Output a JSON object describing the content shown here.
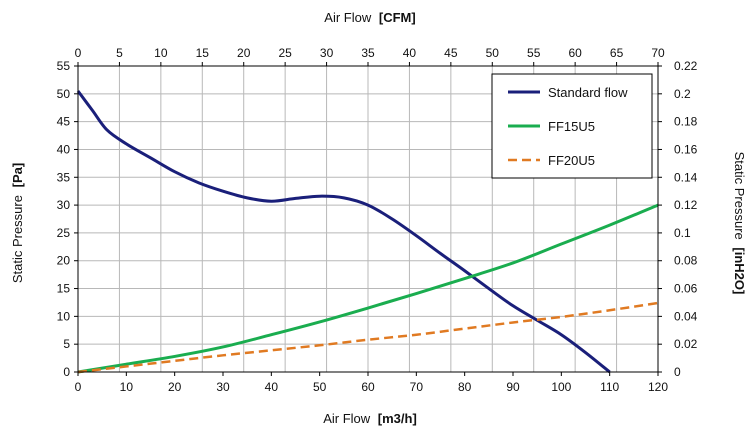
{
  "chart_data": {
    "type": "line",
    "axes": {
      "x_bottom": {
        "label": "Air Flow",
        "unit": "[m3/h]",
        "range": [
          0,
          120
        ],
        "ticks": [
          "0",
          "10",
          "20",
          "30",
          "40",
          "50",
          "60",
          "70",
          "80",
          "90",
          "100",
          "110",
          "120"
        ]
      },
      "x_top": {
        "label": "Air Flow",
        "unit": "[CFM]",
        "range": [
          0,
          70
        ],
        "ticks": [
          "0",
          "5",
          "10",
          "15",
          "20",
          "25",
          "30",
          "35",
          "40",
          "45",
          "50",
          "55",
          "60",
          "65",
          "70"
        ]
      },
      "y_left": {
        "label": "Static Pressure",
        "unit": "[Pa]",
        "range": [
          0,
          55
        ],
        "ticks": [
          "0",
          "5",
          "10",
          "15",
          "20",
          "25",
          "30",
          "35",
          "40",
          "45",
          "50",
          "55"
        ]
      },
      "y_right": {
        "label": "Static Pressure",
        "unit": "[inH2O]",
        "range": [
          0,
          0.22
        ],
        "ticks": [
          "0",
          "0.02",
          "0.04",
          "0.06",
          "0.08",
          "0.1",
          "0.12",
          "0.14",
          "0.16",
          "0.18",
          "0.2",
          "0.22"
        ]
      }
    },
    "grid": true,
    "legend_position": "top-right",
    "series": [
      {
        "name": "Standard flow",
        "color": "#1a1f7a",
        "style": "solid",
        "x": [
          0,
          3,
          6,
          10,
          15,
          20,
          25,
          30,
          35,
          40,
          45,
          50,
          55,
          60,
          65,
          70,
          75,
          80,
          85,
          90,
          95,
          100,
          105,
          110
        ],
        "y": [
          50.5,
          47,
          43.5,
          41,
          38.5,
          36,
          34,
          32.5,
          31.3,
          30.7,
          31.2,
          31.6,
          31.3,
          30,
          27.5,
          24.5,
          21.3,
          18.2,
          15,
          11.9,
          9.3,
          6.7,
          3.5,
          0
        ]
      },
      {
        "name": "FF15U5",
        "color": "#1aad4f",
        "style": "solid",
        "x": [
          0,
          10,
          20,
          30,
          40,
          50,
          60,
          70,
          80,
          90,
          100,
          110,
          120
        ],
        "y": [
          0,
          1.4,
          2.8,
          4.5,
          6.7,
          9.0,
          11.5,
          14.1,
          16.8,
          19.6,
          23.0,
          26.4,
          30.0
        ]
      },
      {
        "name": "FF20U5",
        "color": "#e07a22",
        "style": "dashed",
        "x": [
          0,
          10,
          20,
          30,
          40,
          50,
          60,
          70,
          80,
          90,
          100,
          110,
          120
        ],
        "y": [
          0,
          1.0,
          2.0,
          3.0,
          3.9,
          4.8,
          5.8,
          6.7,
          7.8,
          8.9,
          9.9,
          11.1,
          12.4
        ]
      }
    ]
  }
}
